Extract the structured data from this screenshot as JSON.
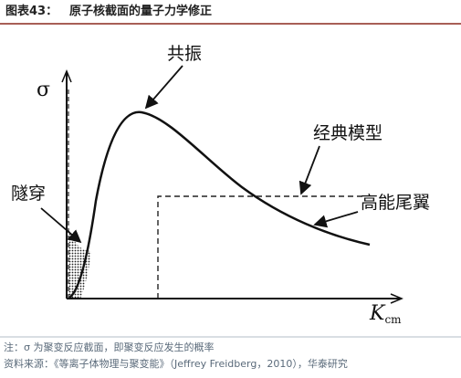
{
  "header": {
    "label": "图表43：",
    "title": "原子核截面的量子力学修正"
  },
  "labels": {
    "sigma": "σ",
    "resonance": "共振",
    "classical": "经典模型",
    "tail": "高能尾翼",
    "tunnel": "隧穿",
    "x_symbol": "K",
    "x_subscript": "cm"
  },
  "notes": {
    "note": "注：σ 为聚变反应截面，即聚变反应发生的概率",
    "source": "资料来源：《等离子体物理与聚变能》（Jeffrey Freidberg，2010），华泰研究"
  }
}
